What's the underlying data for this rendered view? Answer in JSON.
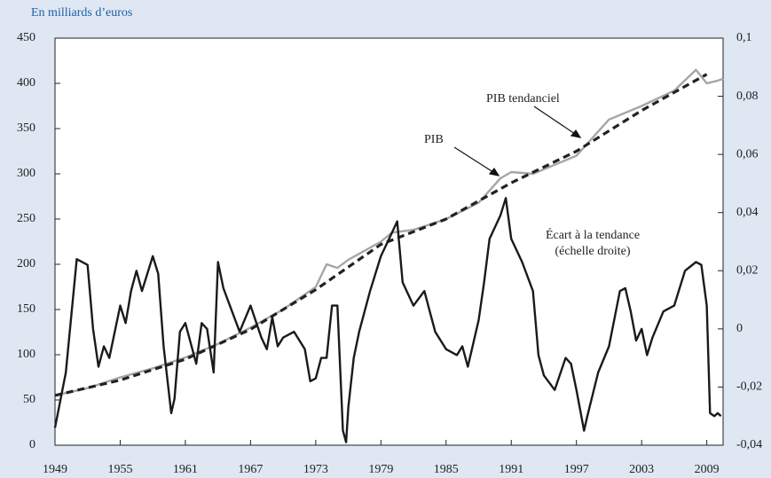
{
  "chart_data": {
    "type": "line",
    "subtitle": "En milliards d’euros",
    "xlim": [
      1949,
      2010.5
    ],
    "xticks": [
      1949,
      1955,
      1961,
      1967,
      1973,
      1979,
      1985,
      1991,
      1997,
      2003,
      2009
    ],
    "ylim": [
      0,
      450
    ],
    "yticks": [
      0,
      50,
      100,
      150,
      200,
      250,
      300,
      350,
      400,
      450
    ],
    "y2lim": [
      -0.04,
      0.1
    ],
    "y2ticks": [
      {
        "value": -0.04,
        "label": "-0,04"
      },
      {
        "value": -0.02,
        "label": "-0,02"
      },
      {
        "value": 0,
        "label": "0"
      },
      {
        "value": 0.02,
        "label": "0,02"
      },
      {
        "value": 0.04,
        "label": "0,04"
      },
      {
        "value": 0.06,
        "label": "0,06"
      },
      {
        "value": 0.08,
        "label": "0,08"
      },
      {
        "value": 0.1,
        "label": "0,1"
      }
    ],
    "series": [
      {
        "name": "PIB",
        "color": "#a6a6a6",
        "x": [
          1949,
          1952,
          1955,
          1958,
          1961,
          1964,
          1967,
          1970,
          1973,
          1974,
          1975,
          1976,
          1979,
          1980,
          1982,
          1985,
          1988,
          1990,
          1991,
          1993,
          1995,
          1997,
          2000,
          2003,
          2006,
          2008,
          2009,
          2010,
          2010.5
        ],
        "values": [
          55,
          63,
          75,
          85,
          97,
          112,
          130,
          150,
          175,
          200,
          196,
          205,
          225,
          235,
          238,
          250,
          268,
          295,
          302,
          300,
          310,
          320,
          360,
          375,
          392,
          415,
          400,
          403,
          405
        ]
      },
      {
        "name": "PIB tendanciel",
        "color": "#222222",
        "dashed": true,
        "x": [
          1949,
          1955,
          1961,
          1967,
          1973,
          1979,
          1985,
          1991,
          1997,
          2003,
          2009
        ],
        "values": [
          55,
          72,
          95,
          128,
          172,
          222,
          250,
          290,
          325,
          370,
          410
        ]
      },
      {
        "name": "Écart à la tendance",
        "color": "#1a1a1a",
        "axis": "y2",
        "x": [
          1949,
          1950,
          1951,
          1952,
          1952.5,
          1953,
          1953.5,
          1954,
          1955,
          1955.5,
          1956,
          1956.5,
          1957,
          1958,
          1958.5,
          1959,
          1959.7,
          1960,
          1960.5,
          1961,
          1962,
          1962.5,
          1963,
          1963.6,
          1964,
          1964.5,
          1965,
          1966,
          1967,
          1968,
          1968.5,
          1969,
          1969.5,
          1970,
          1971,
          1972,
          1972.5,
          1973,
          1973.5,
          1974,
          1974.5,
          1975,
          1975.5,
          1975.8,
          1976,
          1976.5,
          1977,
          1978,
          1979,
          1980,
          1980.5,
          1981,
          1982,
          1983,
          1984,
          1985,
          1986,
          1986.5,
          1987,
          1988,
          1988.5,
          1989,
          1990,
          1990.5,
          1991,
          1992,
          1993,
          1993.5,
          1994,
          1995,
          1996,
          1996.5,
          1997,
          1997.7,
          1998,
          1999,
          2000,
          2001,
          2001.5,
          2002,
          2002.5,
          2003,
          2003.5,
          2004,
          2005,
          2006,
          2007,
          2008,
          2008.5,
          2009,
          2009.3,
          2009.7,
          2010,
          2010.3
        ],
        "values": [
          -0.034,
          -0.015,
          0.024,
          0.022,
          0,
          -0.013,
          -0.006,
          -0.01,
          0.008,
          0.002,
          0.013,
          0.02,
          0.013,
          0.025,
          0.019,
          -0.006,
          -0.029,
          -0.024,
          -0.001,
          0.002,
          -0.012,
          0.002,
          0,
          -0.015,
          0.023,
          0.014,
          0.009,
          -0.001,
          0.008,
          -0.003,
          -0.007,
          0.004,
          -0.006,
          -0.003,
          -0.001,
          -0.007,
          -0.018,
          -0.017,
          -0.01,
          -0.01,
          0.008,
          0.008,
          -0.035,
          -0.039,
          -0.027,
          -0.01,
          -0.001,
          0.013,
          0.025,
          0.033,
          0.037,
          0.016,
          0.008,
          0.013,
          -0.001,
          -0.007,
          -0.009,
          -0.006,
          -0.013,
          0.003,
          0.016,
          0.031,
          0.039,
          0.045,
          0.031,
          0.023,
          0.013,
          -0.009,
          -0.016,
          -0.021,
          -0.01,
          -0.012,
          -0.021,
          -0.035,
          -0.03,
          -0.015,
          -0.006,
          0.013,
          0.014,
          0.006,
          -0.004,
          0,
          -0.009,
          -0.003,
          0.006,
          0.008,
          0.02,
          0.023,
          0.022,
          0.008,
          -0.029,
          -0.03,
          -0.029,
          -0.03
        ]
      }
    ],
    "annotations": [
      "(échelle droite)"
    ]
  }
}
